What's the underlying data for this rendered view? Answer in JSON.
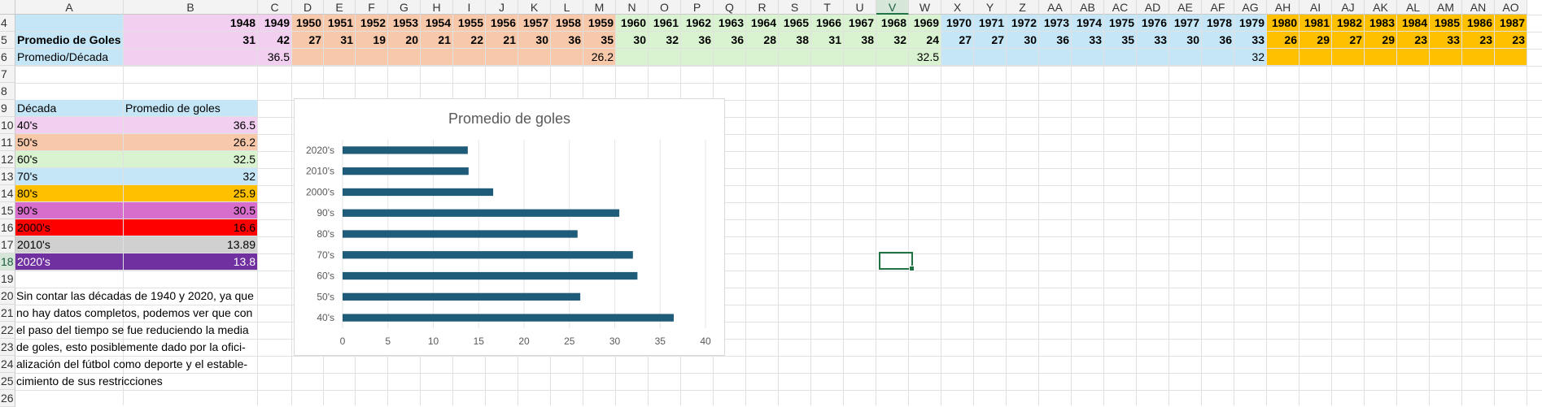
{
  "columns": [
    "A",
    "B",
    "C",
    "D",
    "E",
    "F",
    "G",
    "H",
    "I",
    "J",
    "K",
    "L",
    "M",
    "N",
    "O",
    "P",
    "Q",
    "R",
    "S",
    "T",
    "U",
    "V",
    "W",
    "X",
    "Y",
    "Z",
    "AA",
    "AB",
    "AC",
    "AD",
    "AE",
    "AF",
    "AG",
    "AH",
    "AI",
    "AJ",
    "AK",
    "AL",
    "AM",
    "AN",
    "AO"
  ],
  "selected_column": "V",
  "rows": [
    "4",
    "5",
    "6",
    "7",
    "8",
    "9",
    "10",
    "11",
    "12",
    "13",
    "14",
    "15",
    "16",
    "17",
    "18",
    "19",
    "20",
    "21",
    "22",
    "23",
    "24",
    "25",
    "26"
  ],
  "selected_row": "18",
  "years": [
    "1948",
    "1949",
    "1950",
    "1951",
    "1952",
    "1953",
    "1954",
    "1955",
    "1956",
    "1957",
    "1958",
    "1959",
    "1960",
    "1961",
    "1962",
    "1963",
    "1964",
    "1965",
    "1966",
    "1967",
    "1968",
    "1969",
    "1970",
    "1971",
    "1972",
    "1973",
    "1974",
    "1975",
    "1976",
    "1977",
    "1978",
    "1979",
    "1980",
    "1981",
    "1982",
    "1983",
    "1984",
    "1985",
    "1986",
    "1987"
  ],
  "row5_label": "Promedio de Goles",
  "row6_label": "Promedio/Década",
  "goals": [
    "31",
    "42",
    "27",
    "31",
    "19",
    "20",
    "21",
    "22",
    "21",
    "30",
    "36",
    "35",
    "30",
    "32",
    "36",
    "36",
    "28",
    "38",
    "31",
    "38",
    "32",
    "24",
    "27",
    "27",
    "30",
    "36",
    "33",
    "35",
    "33",
    "30",
    "36",
    "33",
    "26",
    "29",
    "27",
    "29",
    "23",
    "33",
    "23",
    "23"
  ],
  "decade_avgs_row6": {
    "c": "36.5",
    "m": "26.2",
    "w": "32.5",
    "ag": "32"
  },
  "table": {
    "header_decade": "Década",
    "header_avg": "Promedio de goles",
    "rows": [
      {
        "decade": "40's",
        "avg": "36.5",
        "color": "#f2cef0"
      },
      {
        "decade": "50's",
        "avg": "26.2",
        "color": "#f7c8aa"
      },
      {
        "decade": "60's",
        "avg": "32.5",
        "color": "#d9f2d0"
      },
      {
        "decade": "70's",
        "avg": "32",
        "color": "#c5e6f6"
      },
      {
        "decade": "80's",
        "avg": "25.9",
        "color": "#ffc000"
      },
      {
        "decade": "90's",
        "avg": "30.5",
        "color": "#d86ecc"
      },
      {
        "decade": "2000's",
        "avg": "16.6",
        "color": "#ff0000"
      },
      {
        "decade": "2010's",
        "avg": "13.89",
        "color": "#d0d0d0"
      },
      {
        "decade": "2020's",
        "avg": "13.8",
        "color": "#7030a0"
      }
    ]
  },
  "note_lines": [
    "Sin contar las décadas de 1940 y 2020, ya que",
    "no hay datos completos, podemos ver que con",
    "el paso del tiempo se fue reduciendo la media",
    "de goles, esto posiblemente dado por la ofici-",
    "alización del fútbol como deporte y el estable-",
    "cimiento de sus restricciones"
  ],
  "colors": {
    "bar": "#1f5c7a",
    "pink": "#f2cef0",
    "peach": "#f7c8aa",
    "green": "#d9f2d0",
    "blue": "#c5e6f6",
    "orange": "#ffc000"
  },
  "chart_data": {
    "type": "bar",
    "orientation": "horizontal",
    "title": "Promedio de goles",
    "categories": [
      "40's",
      "50's",
      "60's",
      "70's",
      "80's",
      "90's",
      "2000's",
      "2010's",
      "2020's"
    ],
    "values": [
      36.5,
      26.2,
      32.5,
      32,
      25.9,
      30.5,
      16.6,
      13.89,
      13.8
    ],
    "xlim": [
      0,
      40
    ],
    "xticks": [
      "0",
      "5",
      "10",
      "15",
      "20",
      "25",
      "30",
      "35",
      "40"
    ],
    "grid": true
  }
}
